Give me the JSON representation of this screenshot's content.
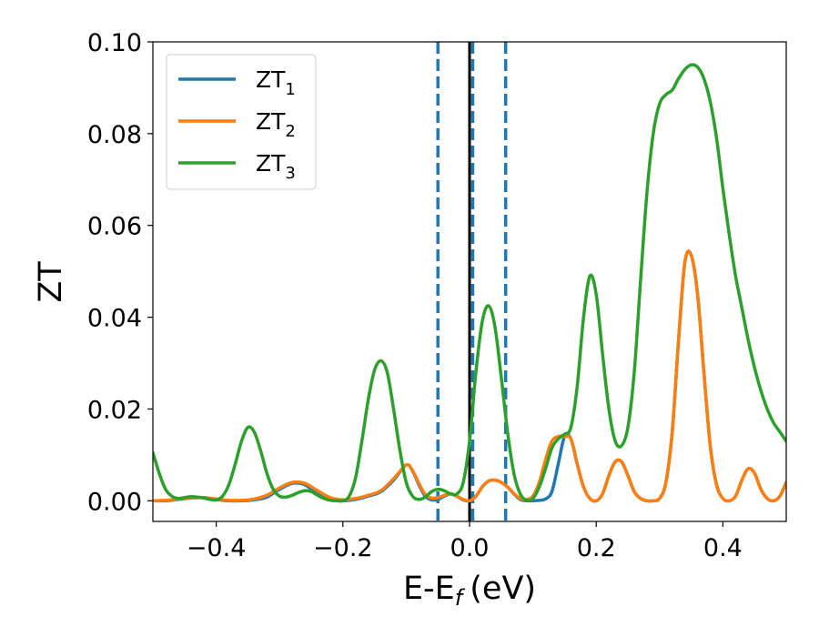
{
  "chart_data": {
    "type": "line",
    "xlabel": "E-E",
    "xlabel_sub": "f",
    "xlabel_unit": "(eV)",
    "ylabel": "ZT",
    "xlim": [
      -0.5,
      0.5
    ],
    "ylim": [
      -0.0045,
      0.1
    ],
    "xticks": [
      -0.4,
      -0.2,
      0.0,
      0.2,
      0.4
    ],
    "xtick_labels": [
      "−0.4",
      "−0.2",
      "0.0",
      "0.2",
      "0.4"
    ],
    "yticks": [
      0.0,
      0.02,
      0.04,
      0.06,
      0.08,
      0.1
    ],
    "ytick_labels": [
      "0.00",
      "0.02",
      "0.04",
      "0.06",
      "0.08",
      "0.10"
    ],
    "grid": false,
    "legend_position": "top-left",
    "series": [
      {
        "name": "ZT",
        "name_sub": "1",
        "color": "#1f77b4",
        "x": [
          -0.5,
          -0.48,
          -0.46,
          -0.44,
          -0.42,
          -0.4,
          -0.38,
          -0.36,
          -0.34,
          -0.32,
          -0.3,
          -0.28,
          -0.26,
          -0.24,
          -0.22,
          -0.2,
          -0.18,
          -0.16,
          -0.14,
          -0.12,
          -0.1,
          -0.09,
          -0.08,
          -0.07,
          -0.06,
          -0.05,
          -0.04,
          -0.03,
          -0.02,
          -0.01,
          0.0,
          0.01,
          0.02,
          0.03,
          0.04,
          0.05,
          0.06,
          0.07,
          0.08,
          0.09,
          0.1,
          0.11,
          0.12,
          0.13,
          0.14,
          0.15,
          0.16,
          0.17,
          0.18,
          0.19,
          0.2,
          0.21,
          0.22,
          0.23,
          0.24,
          0.25,
          0.26,
          0.27,
          0.28,
          0.29,
          0.3,
          0.31,
          0.32,
          0.33,
          0.34,
          0.35,
          0.36,
          0.37,
          0.38,
          0.39,
          0.4,
          0.41,
          0.42,
          0.43,
          0.44,
          0.45,
          0.46,
          0.47,
          0.48,
          0.49,
          0.5
        ],
        "y": [
          0.0,
          0.0,
          0.0003,
          0.0006,
          0.0007,
          0.0003,
          0.0,
          0.0,
          0.0002,
          0.0008,
          0.0025,
          0.0038,
          0.0035,
          0.0015,
          0.0003,
          0.0,
          0.0003,
          0.001,
          0.002,
          0.0045,
          0.0078,
          0.0065,
          0.0035,
          0.001,
          0.0002,
          0.0003,
          0.001,
          0.0015,
          0.001,
          0.0002,
          0.0,
          0.001,
          0.003,
          0.0043,
          0.0045,
          0.004,
          0.003,
          0.0015,
          0.0003,
          0.0,
          0.0,
          0.0001,
          0.0004,
          0.002,
          0.008,
          0.014,
          0.0135,
          0.008,
          0.003,
          0.0005,
          0.0,
          0.0015,
          0.0055,
          0.0085,
          0.0085,
          0.0055,
          0.002,
          0.0005,
          0.0,
          0.0,
          0.0005,
          0.004,
          0.015,
          0.035,
          0.052,
          0.0535,
          0.045,
          0.028,
          0.012,
          0.0035,
          0.0005,
          0.0,
          0.001,
          0.0045,
          0.007,
          0.006,
          0.0025,
          0.0005,
          0.0,
          0.001,
          0.004
        ]
      },
      {
        "name": "ZT",
        "name_sub": "2",
        "color": "#ff7f0e",
        "x": [
          -0.5,
          -0.48,
          -0.46,
          -0.44,
          -0.42,
          -0.4,
          -0.38,
          -0.36,
          -0.34,
          -0.32,
          -0.3,
          -0.28,
          -0.26,
          -0.24,
          -0.22,
          -0.2,
          -0.18,
          -0.16,
          -0.14,
          -0.12,
          -0.1,
          -0.09,
          -0.08,
          -0.07,
          -0.06,
          -0.05,
          -0.04,
          -0.03,
          -0.02,
          -0.01,
          0.0,
          0.01,
          0.02,
          0.03,
          0.04,
          0.05,
          0.06,
          0.07,
          0.08,
          0.09,
          0.1,
          0.11,
          0.12,
          0.13,
          0.14,
          0.15,
          0.16,
          0.17,
          0.18,
          0.19,
          0.2,
          0.21,
          0.22,
          0.23,
          0.24,
          0.25,
          0.26,
          0.27,
          0.28,
          0.29,
          0.3,
          0.31,
          0.32,
          0.33,
          0.34,
          0.35,
          0.36,
          0.37,
          0.38,
          0.39,
          0.4,
          0.41,
          0.42,
          0.43,
          0.44,
          0.45,
          0.46,
          0.47,
          0.48,
          0.49,
          0.5
        ],
        "y": [
          0.0,
          0.0001,
          0.0004,
          0.0007,
          0.0007,
          0.0004,
          0.0001,
          0.0001,
          0.0004,
          0.0012,
          0.0028,
          0.004,
          0.0038,
          0.0022,
          0.0007,
          0.0002,
          0.0005,
          0.0012,
          0.0022,
          0.0048,
          0.0078,
          0.0066,
          0.0038,
          0.0014,
          0.0006,
          0.0007,
          0.0012,
          0.0016,
          0.001,
          0.0003,
          0.0,
          0.001,
          0.003,
          0.0043,
          0.0045,
          0.004,
          0.003,
          0.0016,
          0.0005,
          0.0003,
          0.001,
          0.004,
          0.009,
          0.013,
          0.014,
          0.014,
          0.0135,
          0.008,
          0.003,
          0.0005,
          0.0,
          0.0015,
          0.0055,
          0.0085,
          0.0085,
          0.0055,
          0.002,
          0.0005,
          0.0,
          0.0,
          0.0005,
          0.004,
          0.015,
          0.035,
          0.052,
          0.0535,
          0.045,
          0.028,
          0.012,
          0.0035,
          0.0005,
          0.0,
          0.001,
          0.0045,
          0.007,
          0.006,
          0.0025,
          0.0005,
          0.0,
          0.001,
          0.004
        ]
      },
      {
        "name": "ZT",
        "name_sub": "3",
        "color": "#2ca02c",
        "x": [
          -0.5,
          -0.49,
          -0.48,
          -0.47,
          -0.46,
          -0.45,
          -0.44,
          -0.43,
          -0.42,
          -0.41,
          -0.4,
          -0.39,
          -0.38,
          -0.37,
          -0.36,
          -0.35,
          -0.34,
          -0.33,
          -0.32,
          -0.31,
          -0.3,
          -0.29,
          -0.28,
          -0.27,
          -0.26,
          -0.25,
          -0.24,
          -0.23,
          -0.22,
          -0.21,
          -0.2,
          -0.19,
          -0.18,
          -0.17,
          -0.16,
          -0.15,
          -0.14,
          -0.13,
          -0.12,
          -0.11,
          -0.1,
          -0.09,
          -0.08,
          -0.07,
          -0.06,
          -0.05,
          -0.04,
          -0.03,
          -0.02,
          -0.01,
          0.0,
          0.01,
          0.02,
          0.03,
          0.04,
          0.05,
          0.06,
          0.07,
          0.08,
          0.09,
          0.1,
          0.11,
          0.12,
          0.13,
          0.14,
          0.15,
          0.16,
          0.17,
          0.18,
          0.19,
          0.2,
          0.21,
          0.22,
          0.23,
          0.24,
          0.25,
          0.26,
          0.27,
          0.28,
          0.29,
          0.3,
          0.31,
          0.32,
          0.33,
          0.34,
          0.35,
          0.36,
          0.37,
          0.38,
          0.39,
          0.4,
          0.41,
          0.42,
          0.43,
          0.44,
          0.45,
          0.46,
          0.47,
          0.48,
          0.49,
          0.5
        ],
        "y": [
          0.0105,
          0.006,
          0.0025,
          0.001,
          0.0005,
          0.0007,
          0.0009,
          0.0008,
          0.0006,
          0.0003,
          0.0002,
          0.001,
          0.0035,
          0.008,
          0.013,
          0.016,
          0.015,
          0.011,
          0.006,
          0.0025,
          0.001,
          0.0008,
          0.0012,
          0.0018,
          0.0022,
          0.002,
          0.0012,
          0.0005,
          0.0001,
          0.0,
          0.0,
          0.001,
          0.005,
          0.013,
          0.022,
          0.0285,
          0.0305,
          0.028,
          0.02,
          0.011,
          0.004,
          0.001,
          0.0003,
          0.0008,
          0.002,
          0.0025,
          0.0022,
          0.0015,
          0.0015,
          0.004,
          0.013,
          0.028,
          0.039,
          0.0425,
          0.038,
          0.027,
          0.015,
          0.006,
          0.0015,
          0.0001,
          0.0005,
          0.003,
          0.007,
          0.0115,
          0.0135,
          0.0145,
          0.016,
          0.025,
          0.04,
          0.049,
          0.045,
          0.032,
          0.02,
          0.013,
          0.012,
          0.016,
          0.028,
          0.048,
          0.067,
          0.08,
          0.0865,
          0.0885,
          0.0895,
          0.092,
          0.094,
          0.095,
          0.0945,
          0.092,
          0.087,
          0.079,
          0.068,
          0.058,
          0.049,
          0.042,
          0.035,
          0.029,
          0.024,
          0.02,
          0.017,
          0.015,
          0.013
        ]
      }
    ],
    "vlines": [
      {
        "x": 0.0,
        "color": "#000000",
        "style": "solid"
      },
      {
        "x": -0.05,
        "color": "#1f77b4",
        "style": "dashed"
      },
      {
        "x": 0.005,
        "color": "#1f77b4",
        "style": "dashed"
      },
      {
        "x": 0.057,
        "color": "#1f77b4",
        "style": "dashed"
      }
    ]
  }
}
